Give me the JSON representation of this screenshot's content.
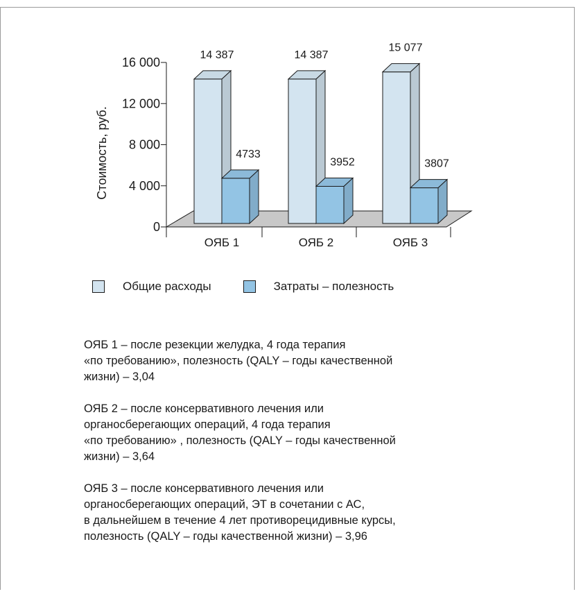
{
  "chart_data": {
    "type": "bar",
    "ylabel": "Стоимость, руб.",
    "categories": [
      "ОЯБ 1",
      "ОЯБ 2",
      "ОЯБ 3"
    ],
    "yticks": [
      "0",
      "4 000",
      "8 000",
      "12 000",
      "16 000"
    ],
    "ylim": [
      0,
      16000
    ],
    "series": [
      {
        "name": "Общие расходы",
        "values": [
          14387,
          14387,
          15077
        ],
        "labels": [
          "14 387",
          "14 387",
          "15 077"
        ],
        "color": "#d3e4f0"
      },
      {
        "name": "Затраты – полезность",
        "values": [
          4733,
          3952,
          3807
        ],
        "labels": [
          "4733",
          "3952",
          "3807"
        ],
        "color": "#93c4e4"
      }
    ],
    "floor_color": "#c8c8c8",
    "legend_position": "bottom"
  },
  "notes": [
    {
      "lines": [
        "ОЯБ 1 – после резекции желудка, 4 года терапия",
        "«по требованию», полезность (QALY – годы качественной",
        "жизни) – 3,04"
      ]
    },
    {
      "lines": [
        "ОЯБ 2 – после консервативного лечения или",
        "органосберегающих операций, 4 года терапия",
        "«по требованию» , полезность (QALY – годы качественной",
        "жизни) – 3,64"
      ]
    },
    {
      "lines": [
        "ОЯБ 3 – после консервативного лечения или",
        "органосберегающих операций, ЭТ в сочетании с АС,",
        "в дальнейшем в течение 4 лет противорецидивные курсы,",
        "полезность (QALY – годы качественной жизни) – 3,96"
      ]
    }
  ]
}
